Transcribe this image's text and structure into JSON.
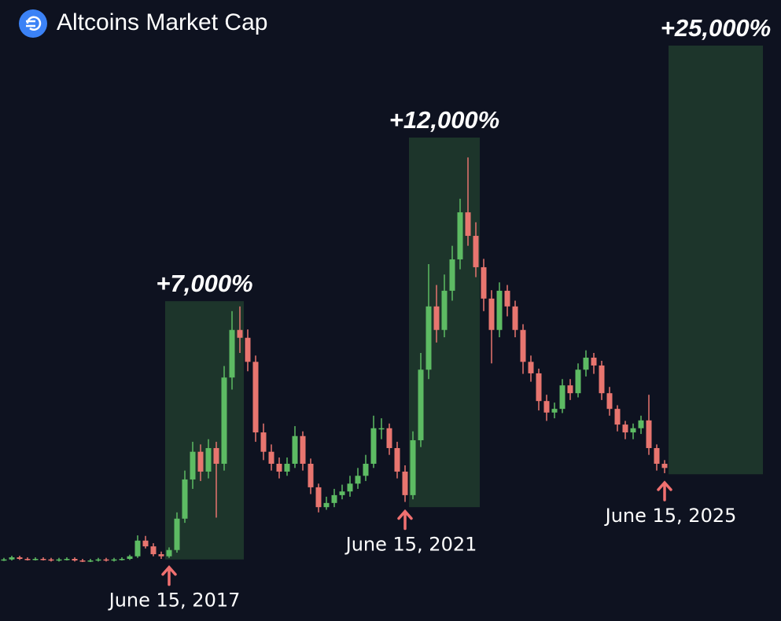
{
  "chart_data": {
    "type": "candlestick",
    "title": "Altcoins Market Cap",
    "open": [
      0.4,
      0.5,
      0.9,
      0.6,
      0.5,
      0.6,
      0.5,
      0.3,
      0.5,
      0.6,
      0.3,
      0.2,
      0.3,
      0.5,
      0.3,
      0.5,
      0.6,
      1.1,
      4.1,
      3.0,
      1.5,
      1.1,
      2.3,
      8.3,
      15.8,
      21.1,
      17.3,
      21.8,
      18.8,
      35.3,
      44.4,
      42.9,
      38.3,
      24.8,
      21.1,
      18.8,
      17.3,
      18.8,
      24.1,
      18.8,
      14.3,
      10.5,
      11.3,
      12.8,
      13.5,
      15.0,
      16.5,
      18.8,
      25.6,
      25.6,
      21.8,
      17.3,
      12.8,
      23.3,
      36.8,
      48.9,
      44.4,
      51.9,
      57.9,
      66.9,
      62.4,
      56.4,
      50.4,
      44.4,
      51.9,
      48.9,
      44.4,
      38.3,
      36.1,
      30.8,
      28.6,
      29.3,
      33.8,
      32.3,
      36.8,
      39.1,
      37.6,
      32.3,
      29.3,
      26.3,
      24.8,
      25.6,
      27.1,
      21.8,
      18.8
    ],
    "high": [
      0.8,
      1.2,
      1.2,
      0.9,
      0.9,
      0.9,
      0.8,
      0.8,
      0.9,
      0.9,
      0.6,
      0.6,
      0.8,
      0.8,
      0.8,
      0.9,
      1.4,
      5.1,
      5.0,
      3.6,
      2.0,
      2.8,
      9.5,
      17.5,
      23.0,
      22.5,
      23.5,
      23.0,
      37.5,
      48.0,
      48.9,
      44.5,
      39.5,
      26.5,
      22.5,
      20.0,
      20.0,
      26.0,
      25.0,
      19.8,
      15.0,
      12.5,
      14.0,
      14.8,
      16.5,
      18.0,
      20.5,
      28.0,
      27.5,
      26.5,
      23.0,
      18.5,
      25.0,
      40.0,
      57.0,
      53.0,
      55.0,
      60.5,
      69.5,
      77.4,
      65.0,
      58.0,
      52.0,
      53.5,
      53.0,
      50.0,
      45.5,
      39.5,
      37.0,
      32.0,
      30.5,
      35.0,
      35.0,
      38.0,
      40.5,
      40.0,
      38.5,
      33.5,
      30.0,
      27.0,
      26.5,
      28.0,
      32.0,
      22.5,
      19.5
    ],
    "low": [
      0.2,
      0.3,
      0.4,
      0.3,
      0.3,
      0.3,
      0.1,
      0.1,
      0.3,
      0.1,
      0.0,
      0.0,
      0.1,
      0.1,
      0.1,
      0.3,
      0.4,
      0.8,
      2.6,
      1.1,
      0.6,
      0.8,
      1.8,
      7.5,
      14.0,
      15.5,
      16.0,
      8.5,
      17.5,
      33.0,
      40.0,
      36.5,
      23.0,
      19.5,
      17.5,
      16.0,
      16.5,
      18.0,
      17.5,
      13.0,
      9.5,
      10.0,
      10.5,
      12.0,
      12.5,
      14.0,
      15.5,
      18.0,
      23.5,
      20.5,
      16.0,
      11.5,
      12.0,
      22.0,
      35.0,
      42.0,
      43.0,
      50.0,
      56.0,
      60.5,
      54.5,
      48.0,
      38.0,
      43.0,
      47.0,
      43.0,
      36.0,
      34.5,
      29.0,
      27.0,
      27.5,
      28.5,
      31.0,
      31.5,
      35.5,
      36.0,
      31.0,
      28.0,
      25.0,
      23.5,
      23.5,
      24.5,
      20.5,
      17.5,
      17.0
    ],
    "close": [
      0.5,
      0.9,
      0.6,
      0.5,
      0.6,
      0.5,
      0.3,
      0.5,
      0.6,
      0.3,
      0.2,
      0.3,
      0.5,
      0.3,
      0.5,
      0.6,
      1.1,
      4.1,
      3.0,
      1.5,
      1.1,
      2.3,
      8.3,
      15.8,
      21.1,
      17.3,
      21.8,
      18.8,
      35.3,
      44.4,
      42.9,
      38.3,
      24.8,
      21.1,
      18.8,
      17.3,
      18.8,
      24.1,
      18.8,
      14.3,
      10.5,
      11.3,
      12.8,
      13.5,
      15.0,
      16.5,
      18.8,
      25.6,
      25.6,
      21.8,
      17.3,
      12.8,
      23.3,
      36.8,
      48.9,
      44.4,
      51.9,
      57.9,
      66.9,
      62.4,
      56.4,
      50.4,
      44.4,
      51.9,
      48.9,
      44.4,
      38.3,
      36.1,
      30.8,
      28.6,
      29.3,
      33.8,
      32.3,
      36.8,
      39.1,
      37.6,
      32.3,
      29.3,
      26.3,
      24.8,
      25.6,
      27.1,
      21.8,
      18.8,
      18.0
    ],
    "up_color": "#5dbb63",
    "down_color": "#e8756f",
    "zone_color": "#1f3a2c",
    "marker_color": "#f07070",
    "ylim": [
      0,
      100
    ],
    "zones": [
      {
        "start": 21,
        "end": 30,
        "low": 0.5,
        "high": 49.9,
        "label": "+7,000%"
      },
      {
        "start": 52,
        "end": 60,
        "low": 10.5,
        "high": 81.2,
        "label": "+12,000%"
      },
      {
        "start": 85,
        "end": 96,
        "low": 16.8,
        "high": 98.8,
        "label": "+25,000%"
      }
    ],
    "markers": [
      {
        "index": 21,
        "label": "June 15, 2017"
      },
      {
        "index": 51,
        "label": "June 15, 2021"
      },
      {
        "index": 84,
        "label": "June 15, 2025"
      }
    ]
  }
}
